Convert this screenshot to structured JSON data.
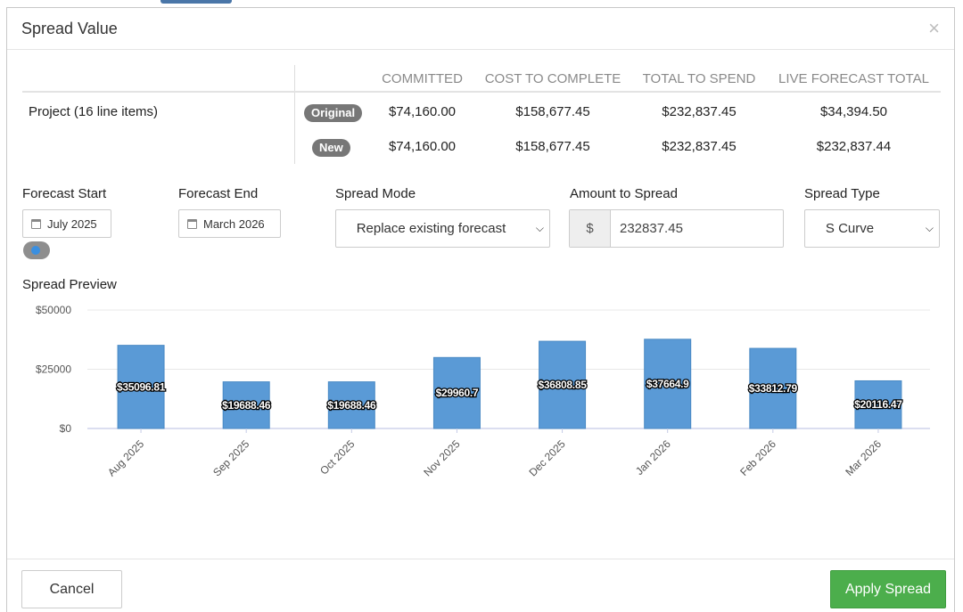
{
  "modal": {
    "title": "Spread Value",
    "close_glyph": "×"
  },
  "summary": {
    "columns": [
      "COMMITTED",
      "COST TO COMPLETE",
      "TOTAL TO SPEND",
      "LIVE FORECAST TOTAL"
    ],
    "project_label": "Project (16 line items)",
    "rows": [
      {
        "badge": "Original",
        "values": [
          "$74,160.00",
          "$158,677.45",
          "$232,837.45",
          "$34,394.50"
        ]
      },
      {
        "badge": "New",
        "values": [
          "$74,160.00",
          "$158,677.45",
          "$232,837.45",
          "$232,837.44"
        ]
      }
    ]
  },
  "form": {
    "forecast_start": {
      "label": "Forecast Start",
      "value": "July 2025",
      "icon": "calendar-icon"
    },
    "forecast_end": {
      "label": "Forecast End",
      "value": "March 2026",
      "icon": "calendar-icon"
    },
    "spread_mode": {
      "label": "Spread Mode",
      "value": "Replace existing forecast"
    },
    "amount": {
      "label": "Amount to Spread",
      "prefix": "$",
      "value": "232837.45"
    },
    "spread_type": {
      "label": "Spread Type",
      "value": "S Curve"
    },
    "toggle_on": true
  },
  "preview": {
    "title": "Spread Preview"
  },
  "chart_data": {
    "type": "bar",
    "categories": [
      "Aug 2025",
      "Sep 2025",
      "Oct 2025",
      "Nov 2025",
      "Dec 2025",
      "Jan 2026",
      "Feb 2026",
      "Mar 2026"
    ],
    "values": [
      35096.81,
      19688.46,
      19688.46,
      29960.7,
      36808.85,
      37664.9,
      33812.79,
      20116.47
    ],
    "data_labels": [
      "$35096.81",
      "$19688.46",
      "$19688.46",
      "$29960.7",
      "$36808.85",
      "$37664.9",
      "$33812.79",
      "$20116.47"
    ],
    "y_ticks": [
      "$0",
      "$25000",
      "$50000"
    ],
    "y_tick_values": [
      0,
      25000,
      50000
    ],
    "ylim": [
      0,
      50000
    ],
    "bar_color": "#5a9ad6",
    "grid": true,
    "title": "",
    "xlabel": "",
    "ylabel": ""
  },
  "footer": {
    "cancel_label": "Cancel",
    "apply_label": "Apply Spread"
  },
  "colors": {
    "apply": "#4cae4c",
    "badge": "#777777",
    "bar": "#5a9ad6"
  }
}
